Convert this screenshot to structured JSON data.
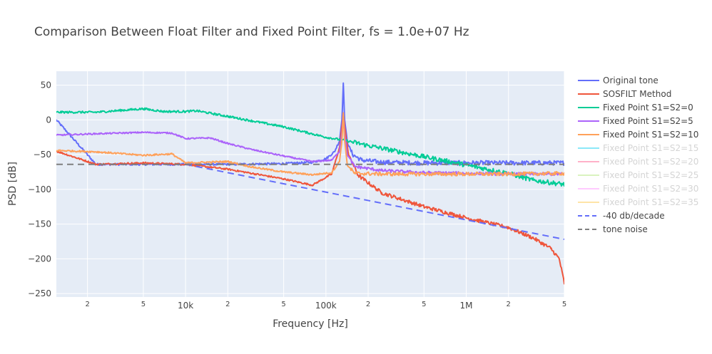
{
  "chart_data": {
    "type": "line",
    "title": "Comparison Between Float Filter and Fixed Point Filter, fs = 1.0e+07 Hz",
    "xlabel": "Frequency [Hz]",
    "ylabel": "PSD [dB]",
    "xscale": "log",
    "xlim": [
      1200,
      5000000
    ],
    "ylim": [
      -255,
      70
    ],
    "grid": true,
    "legend_position": "right",
    "x_ticks_major": [
      {
        "value": 10000,
        "label": "10k"
      },
      {
        "value": 100000,
        "label": "100k"
      },
      {
        "value": 1000000,
        "label": "1M"
      }
    ],
    "x_ticks_minor": [
      {
        "value": 2000,
        "label": "2"
      },
      {
        "value": 5000,
        "label": "5"
      },
      {
        "value": 20000,
        "label": "2"
      },
      {
        "value": 50000,
        "label": "5"
      },
      {
        "value": 200000,
        "label": "2"
      },
      {
        "value": 500000,
        "label": "5"
      },
      {
        "value": 2000000,
        "label": "2"
      },
      {
        "value": 5000000,
        "label": "5"
      }
    ],
    "y_ticks": [
      {
        "value": 50,
        "label": "50"
      },
      {
        "value": 0,
        "label": "0"
      },
      {
        "value": -50,
        "label": "−50"
      },
      {
        "value": -100,
        "label": "−100"
      },
      {
        "value": -150,
        "label": "−150"
      },
      {
        "value": -200,
        "label": "−200"
      },
      {
        "value": -250,
        "label": "−250"
      }
    ],
    "series": [
      {
        "name": "Original tone",
        "color": "#636efa",
        "dash": "solid",
        "visible": true,
        "noise": 1.5,
        "x": [
          1200,
          2300,
          5000,
          10000,
          20000,
          50000,
          80000,
          100000,
          115000,
          125000,
          130000,
          133000,
          136000,
          142000,
          155000,
          180000,
          250000,
          500000,
          1000000,
          2000000,
          5000000
        ],
        "y": [
          0,
          -64,
          -64,
          -64,
          -64,
          -63,
          -61,
          -56,
          -46,
          -30,
          0,
          53,
          0,
          -32,
          -50,
          -58,
          -61,
          -62,
          -62,
          -62,
          -62
        ]
      },
      {
        "name": "SOSFILT Method",
        "color": "#ef553b",
        "dash": "solid",
        "visible": true,
        "noise": 1.2,
        "x": [
          1200,
          2300,
          5000,
          10000,
          20000,
          50000,
          80000,
          110000,
          125000,
          130000,
          133000,
          136000,
          145000,
          170000,
          250000,
          500000,
          1000000,
          2000000,
          3000000,
          4000000,
          4600000,
          5000000
        ],
        "y": [
          -45,
          -64,
          -62,
          -64,
          -71,
          -85,
          -94,
          -78,
          -40,
          -10,
          10,
          -10,
          -50,
          -80,
          -105,
          -125,
          -141,
          -155,
          -170,
          -185,
          -200,
          -235
        ]
      },
      {
        "name": "Fixed Point S1=S2=0",
        "color": "#00cc96",
        "dash": "solid",
        "visible": true,
        "noise": 1.5,
        "x": [
          1200,
          2300,
          5000,
          7000,
          10000,
          12000,
          20000,
          50000,
          100000,
          140000,
          200000,
          500000,
          1000000,
          2000000,
          3000000,
          5000000
        ],
        "y": [
          11,
          11,
          16,
          12,
          12,
          13,
          5,
          -10,
          -25,
          -30,
          -37,
          -53,
          -65,
          -77,
          -87,
          -93
        ]
      },
      {
        "name": "Fixed Point S1=S2=5",
        "color": "#ab63fa",
        "dash": "solid",
        "visible": true,
        "noise": 1.0,
        "x": [
          1200,
          2300,
          5000,
          8000,
          10000,
          15000,
          20000,
          30000,
          50000,
          80000,
          110000,
          125000,
          130000,
          133000,
          136000,
          142000,
          160000,
          250000,
          500000,
          1000000,
          2000000,
          5000000
        ],
        "y": [
          -22,
          -20,
          -18,
          -19,
          -27,
          -26,
          -34,
          -43,
          -52,
          -60,
          -58,
          -45,
          -20,
          10,
          -20,
          -50,
          -67,
          -73,
          -76,
          -77,
          -78,
          -78
        ]
      },
      {
        "name": "Fixed Point S1=S2=10",
        "color": "#ffa15a",
        "dash": "solid",
        "visible": true,
        "noise": 1.2,
        "x": [
          1200,
          2300,
          5000,
          8000,
          10000,
          20000,
          30000,
          50000,
          80000,
          110000,
          125000,
          130000,
          133000,
          136000,
          142000,
          160000,
          250000,
          500000,
          1000000,
          2000000,
          5000000
        ],
        "y": [
          -44,
          -46,
          -51,
          -49,
          -62,
          -60,
          -68,
          -75,
          -79,
          -76,
          -60,
          -30,
          10,
          -30,
          -65,
          -77,
          -78,
          -78,
          -78,
          -78,
          -77
        ]
      },
      {
        "name": "Fixed Point S1=S2=15",
        "color": "#19d3f3",
        "dash": "solid",
        "visible": false,
        "x": [],
        "y": []
      },
      {
        "name": "Fixed Point S1=S2=20",
        "color": "#ff6692",
        "dash": "solid",
        "visible": false,
        "x": [],
        "y": []
      },
      {
        "name": "Fixed Point S1=S2=25",
        "color": "#b6e880",
        "dash": "solid",
        "visible": false,
        "x": [],
        "y": []
      },
      {
        "name": "Fixed Point S1=S2=30",
        "color": "#ff97ff",
        "dash": "solid",
        "visible": false,
        "x": [],
        "y": []
      },
      {
        "name": "Fixed Point S1=S2=35",
        "color": "#fecb52",
        "dash": "solid",
        "visible": false,
        "x": [],
        "y": []
      },
      {
        "name": "-40 db/decade",
        "color": "#636efa",
        "dash": "dash",
        "visible": true,
        "noise": 0,
        "x": [
          10000,
          5000000
        ],
        "y": [
          -64,
          -172
        ]
      },
      {
        "name": "tone noise",
        "color": "#7f7f7f",
        "dash": "dash",
        "visible": true,
        "noise": 0,
        "x": [
          1200,
          5000000
        ],
        "y": [
          -64,
          -64
        ]
      }
    ]
  }
}
